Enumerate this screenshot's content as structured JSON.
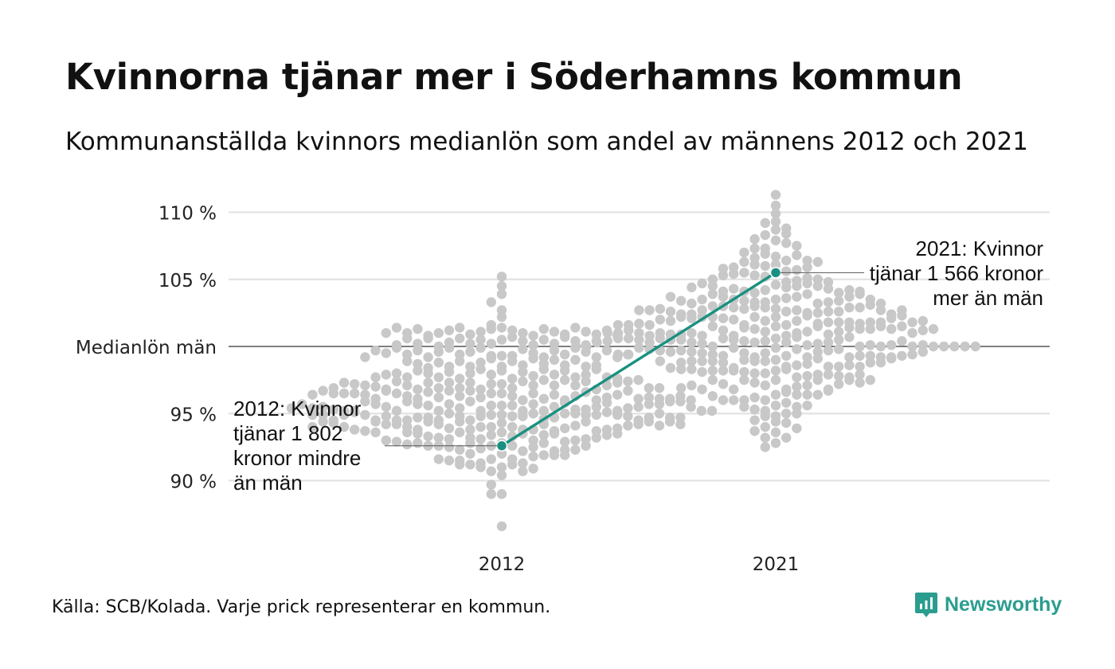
{
  "title": "Kvinnorna tjänar mer i Söderhamns kommun",
  "subtitle": "Kommunanställda kvinnors medianlön som andel av männens 2012 och 2021",
  "source": "Källa: SCB/Kolada. Varje prick representerar en kommun.",
  "brand": "Newsworthy",
  "colors": {
    "highlight": "#1a9080",
    "dots": "#c8c8c8",
    "grid": "#e3e3e3",
    "baseline": "#333333",
    "brand": "#2a9d8f"
  },
  "chart_data": {
    "type": "scatter",
    "title": "Kvinnorna tjänar mer i Söderhamns kommun",
    "subtitle": "Kommunanställda kvinnors medianlön som andel av männens 2012 och 2021",
    "categories": [
      "2012",
      "2021"
    ],
    "ylim": [
      86,
      112
    ],
    "y_ticks": [
      {
        "value": 90,
        "label": "90 %"
      },
      {
        "value": 95,
        "label": "95 %"
      },
      {
        "value": 100,
        "label": "Medianlön män"
      },
      {
        "value": 105,
        "label": "105 %"
      },
      {
        "value": 110,
        "label": "110 %"
      }
    ],
    "grid": true,
    "highlight": [
      {
        "category": "2012",
        "value": 92.6
      },
      {
        "category": "2021",
        "value": 105.5
      }
    ],
    "annotations": [
      {
        "category": "2012",
        "lines": [
          "2012: Kvinnor",
          "tjänar 1 802",
          "kronor mindre",
          "än män"
        ]
      },
      {
        "category": "2021",
        "lines": [
          "2021: Kvinnor",
          "tjänar 1 566 kronor",
          "mer än män"
        ]
      }
    ],
    "distributions": [
      {
        "category": "2012",
        "values": [
          105.2,
          104.5,
          103.9,
          103.3,
          102.7,
          102.2,
          101.6,
          100.5,
          100.2,
          99.3,
          99.3,
          99.3,
          98.5,
          98.2,
          97.9,
          97.6,
          97.2,
          97.2,
          96.9,
          96.8,
          96.5,
          96.5,
          96.3,
          96.2,
          96.0,
          95.6,
          95.6,
          95.6,
          95.2,
          95.2,
          94.9,
          94.9,
          94.8,
          94.8,
          94.8,
          94.5,
          94.3,
          94.0,
          94.0,
          94.0,
          93.8,
          93.8,
          93.8,
          93.6,
          93.4,
          93.3,
          93.1,
          92.8,
          92.6,
          92.6,
          92.4,
          92.2,
          92.0,
          91.6,
          91.6,
          91.3,
          91.3,
          91.0,
          90.7,
          90.4,
          89.7,
          89.0,
          89.0,
          86.6,
          101.4,
          101.3,
          101.2,
          101.1,
          101.0,
          100.9,
          100.8,
          100.7,
          100.5,
          100.4,
          100.2,
          100.1,
          99.9,
          99.8,
          99.6,
          99.5,
          99.4,
          99.2,
          99.1,
          98.9,
          98.8,
          98.6,
          98.5,
          98.3,
          98.1,
          98.0,
          97.8,
          97.6,
          97.4,
          97.3,
          97.1,
          96.9,
          96.7,
          96.5,
          96.3,
          96.1,
          95.9,
          95.7,
          95.4,
          95.2,
          95.0,
          94.8,
          94.6,
          94.4,
          94.2,
          93.9,
          93.7,
          93.5,
          93.2,
          93.0,
          92.8,
          92.5,
          92.3,
          92.0,
          91.8,
          91.5,
          91.2,
          91.0,
          90.7,
          101.4,
          101.3,
          101.2,
          101.1,
          101.0,
          100.9,
          100.8,
          100.6,
          100.5,
          100.3,
          100.2,
          100.0,
          99.9,
          99.7,
          99.6,
          99.4,
          99.2,
          99.1,
          98.9,
          98.7,
          98.5,
          98.3,
          98.1,
          97.9,
          97.7,
          97.5,
          97.3,
          97.1,
          96.9,
          96.7,
          96.4,
          96.2,
          96.0,
          95.7,
          95.5,
          95.2,
          95.0,
          94.7,
          94.5,
          94.2,
          93.9,
          93.6,
          93.4,
          93.1,
          92.8,
          92.5,
          92.2,
          91.9,
          91.5,
          91.2,
          90.9,
          101.4,
          101.3,
          101.1,
          101.0,
          100.9,
          100.7,
          100.6,
          100.4,
          100.2,
          100.1,
          99.9,
          99.7,
          99.6,
          99.4,
          99.2,
          99.0,
          98.8,
          98.6,
          98.4,
          98.2,
          98.0,
          97.7,
          97.5,
          97.3,
          97.1,
          96.8,
          96.6,
          96.3,
          96.1,
          95.8,
          95.6,
          95.3,
          95.0,
          94.7,
          94.4,
          94.1,
          93.8,
          93.5,
          93.2,
          92.9,
          92.6,
          92.3,
          91.9,
          91.6,
          91.2,
          101.4,
          101.2,
          101.0,
          100.8,
          100.6,
          100.4,
          100.1,
          99.9,
          99.7,
          99.5,
          99.2,
          99.0,
          98.7,
          98.5,
          98.2,
          97.9,
          97.7,
          97.4,
          97.1,
          96.8,
          96.6,
          96.3,
          96.0,
          95.7,
          95.3,
          95.0,
          94.7,
          94.4,
          94.0,
          93.7,
          93.3,
          93.0,
          92.6,
          92.3,
          91.9,
          99.7,
          99.4,
          99.2,
          98.9,
          98.6,
          98.3,
          98.0,
          97.7,
          97.4,
          97.1,
          96.8,
          96.5,
          96.2,
          95.9,
          95.5,
          95.2,
          94.9,
          94.5,
          94.2,
          93.8,
          93.5,
          93.1,
          92.8,
          97.9,
          97.6,
          97.3,
          97.0,
          96.7,
          96.4,
          96.1,
          95.8,
          95.5,
          95.2,
          94.9,
          94.5,
          94.2,
          93.9,
          93.6,
          93.2,
          92.9,
          92.6,
          97.7,
          97.4,
          97.1,
          96.7,
          96.4,
          96.1,
          95.7,
          95.4,
          95.1,
          94.8,
          94.4,
          94.1,
          93.7,
          93.4,
          93.0,
          92.7,
          97.5,
          97.2,
          96.9,
          96.5,
          96.2,
          95.9,
          95.5,
          95.2,
          94.9,
          94.5,
          94.2,
          93.8,
          93.5,
          97.3,
          96.9,
          96.5,
          96.1,
          95.7,
          95.2,
          94.8,
          94.4,
          94.0,
          93.6,
          96.9,
          96.5,
          96.1,
          95.7,
          95.3,
          94.9,
          94.5,
          94.1,
          96.7,
          96.3,
          95.9,
          95.5,
          95.1,
          94.7,
          94.3,
          96.4,
          95.9,
          95.4,
          94.9,
          94.4,
          96.0,
          95.5,
          95.0,
          94.5,
          95.7,
          95.2,
          94.7,
          95.4,
          94.9,
          95.2,
          94.7,
          94.9,
          94.4,
          94.2,
          94.0
        ]
      },
      {
        "category": "2021",
        "values": [
          111.3,
          110.5,
          109.9,
          109.3,
          108.7,
          108.3,
          107.9,
          107.3,
          106.7,
          106.1,
          105.5,
          104.6,
          104.2,
          103.5,
          103.3,
          102.8,
          102.2,
          101.9,
          101.6,
          101.5,
          101.1,
          100.8,
          100.6,
          100.4,
          100.3,
          100.3,
          99.9,
          99.5,
          99.3,
          99.2,
          99.0,
          98.9,
          98.5,
          98.2,
          98.0,
          97.5,
          97.1,
          96.8,
          96.4,
          96.0,
          95.6,
          95.2,
          94.8,
          94.4,
          94.0,
          93.6,
          93.2,
          92.8,
          92.5,
          109.2,
          108.4,
          107.7,
          106.9,
          106.4,
          106.0,
          105.6,
          105.2,
          104.8,
          104.4,
          104.0,
          103.6,
          103.3,
          102.9,
          102.6,
          102.2,
          101.9,
          101.6,
          101.3,
          101.0,
          100.7,
          100.4,
          100.1,
          99.8,
          99.5,
          99.2,
          98.9,
          98.6,
          98.3,
          98.0,
          97.7,
          97.3,
          97.0,
          96.6,
          96.2,
          95.8,
          95.3,
          94.8,
          94.3,
          93.7,
          93.2,
          108.8,
          108.0,
          107.3,
          106.6,
          106.1,
          105.7,
          105.3,
          104.9,
          104.5,
          104.1,
          103.7,
          103.4,
          103.0,
          102.7,
          102.3,
          102.0,
          101.7,
          101.4,
          101.1,
          100.8,
          100.5,
          100.2,
          99.9,
          99.6,
          99.3,
          99.0,
          98.7,
          98.4,
          98.1,
          97.8,
          97.5,
          97.1,
          96.8,
          96.4,
          96.0,
          95.5,
          95.0,
          94.5,
          93.9,
          107.5,
          106.8,
          106.3,
          105.9,
          105.5,
          105.1,
          104.7,
          104.3,
          103.9,
          103.5,
          103.2,
          102.8,
          102.5,
          102.1,
          101.8,
          101.5,
          101.2,
          100.9,
          100.6,
          100.3,
          100.0,
          99.7,
          99.4,
          99.1,
          98.8,
          98.5,
          98.2,
          97.9,
          97.5,
          97.2,
          96.8,
          96.4,
          96.0,
          95.5,
          95.0,
          107.0,
          106.4,
          105.9,
          105.4,
          105.0,
          104.5,
          104.1,
          103.7,
          103.3,
          102.9,
          102.5,
          102.2,
          101.8,
          101.5,
          101.1,
          100.8,
          100.5,
          100.2,
          99.8,
          99.5,
          99.2,
          98.9,
          98.5,
          98.2,
          97.9,
          97.5,
          97.2,
          96.8,
          96.4,
          96.0,
          95.6,
          106.3,
          105.8,
          105.3,
          104.8,
          104.3,
          103.9,
          103.4,
          103.0,
          102.6,
          102.2,
          101.8,
          101.4,
          101.0,
          100.7,
          100.3,
          100.0,
          99.6,
          99.3,
          98.9,
          98.6,
          98.2,
          97.8,
          97.5,
          97.1,
          96.7,
          96.3,
          105.0,
          104.5,
          104.0,
          103.5,
          103.0,
          102.6,
          102.1,
          101.7,
          101.3,
          100.9,
          100.5,
          100.1,
          99.7,
          99.3,
          98.9,
          98.5,
          98.1,
          97.7,
          97.3,
          96.9,
          104.7,
          104.2,
          103.7,
          103.2,
          102.7,
          102.2,
          101.8,
          101.3,
          100.9,
          100.5,
          100.0,
          99.6,
          99.2,
          98.8,
          98.3,
          97.9,
          97.5,
          104.4,
          103.9,
          103.4,
          102.9,
          102.4,
          101.9,
          101.5,
          101.0,
          100.6,
          100.1,
          99.7,
          99.2,
          98.8,
          98.4,
          104.1,
          103.5,
          102.9,
          102.4,
          101.8,
          101.3,
          100.8,
          100.3,
          99.8,
          99.3,
          98.8,
          98.3,
          103.7,
          103.1,
          102.6,
          102.0,
          101.5,
          101.0,
          100.4,
          99.9,
          99.4,
          98.9,
          103.2,
          102.7,
          102.1,
          101.6,
          101.0,
          100.5,
          100.0,
          99.4,
          99.1,
          102.8,
          102.3,
          101.7,
          101.2,
          100.6,
          100.1,
          99.6,
          102.4,
          101.8,
          101.2,
          100.6,
          100.0,
          99.4,
          101.6,
          101.0,
          100.4,
          101.9,
          101.3,
          100.0,
          101.6,
          101.0,
          100.3,
          100.0,
          100.0,
          100.0,
          102.7,
          102.7,
          100.0,
          102.7,
          100.0
        ]
      }
    ]
  }
}
